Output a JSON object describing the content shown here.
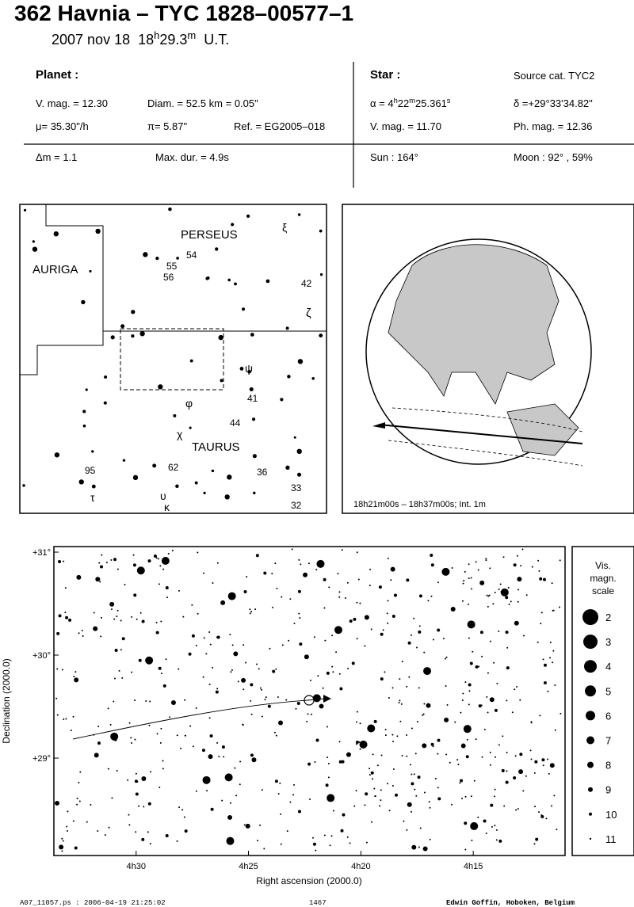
{
  "header": {
    "title": "362 Havnia  –  TYC 1828–00577–1",
    "date": "2007 nov 18",
    "time_hours": "18",
    "time_h": "h",
    "time_minutes": "29.3",
    "time_m": "m",
    "time_zone": "U.T."
  },
  "planet": {
    "heading": "Planet :",
    "vmag": "V. mag. = 12.30",
    "diam": "Diam. = 52.5 km = 0.05\"",
    "motion": "μ=  35.30\"/h",
    "parallax": "π=  5.87\"",
    "ref": "Ref. = EG2005–018",
    "dmag": "Δm = 1.1",
    "maxdur": "Max. dur. = 4.9s"
  },
  "star": {
    "heading": "Star :",
    "source": "Source cat.  TYC2",
    "ra": [
      "α =  4",
      "h",
      "22",
      "m",
      "25.361",
      "s"
    ],
    "dec": "δ =+29°33'34.82\"",
    "vmag": "V. mag. = 11.70",
    "phmag": "Ph. mag. = 12.36",
    "sun": "Sun : 164°",
    "moon": "Moon :  92° , 59%"
  },
  "finder": {
    "labels": [
      "PERSEUS",
      "AURIGA",
      "TAURUS",
      "ξ",
      "54",
      "55",
      "56",
      "42",
      "ζ",
      "ψ",
      "41",
      "φ",
      "44",
      "χ",
      "62",
      "36",
      "95",
      "33",
      "τ",
      "υ",
      "κ",
      "32"
    ]
  },
  "globe": {
    "caption": "18h21m00s – 18h37m00s; Int.  1m"
  },
  "star_chart": {
    "type": "scatter",
    "xlabel": "Right ascension (2000.0)",
    "ylabel": "Declination (2000.0)",
    "xlim": [
      4.561,
      4.1819
    ],
    "ylim": [
      28.054,
      31.054
    ],
    "xticks": [
      {
        "value": 4.5,
        "label": "4h30"
      },
      {
        "value": 4.4167,
        "label": "4h25"
      },
      {
        "value": 4.3333,
        "label": "4h20"
      },
      {
        "value": 4.25,
        "label": "4h15"
      }
    ],
    "yticks": [
      {
        "value": 31,
        "label": "+31°"
      },
      {
        "value": 30,
        "label": "+30°"
      },
      {
        "value": 29,
        "label": "+29°"
      }
    ],
    "scale_title": [
      "Vis.",
      "magn.",
      "scale"
    ],
    "scale": [
      2,
      3,
      4,
      5,
      6,
      7,
      8,
      9,
      10,
      11
    ]
  },
  "footer": {
    "file": "A07_11057.ps : 2006-04-19 21:25:02",
    "number": "1467",
    "author": "Edwin Goffin, Hoboken, Belgium"
  }
}
